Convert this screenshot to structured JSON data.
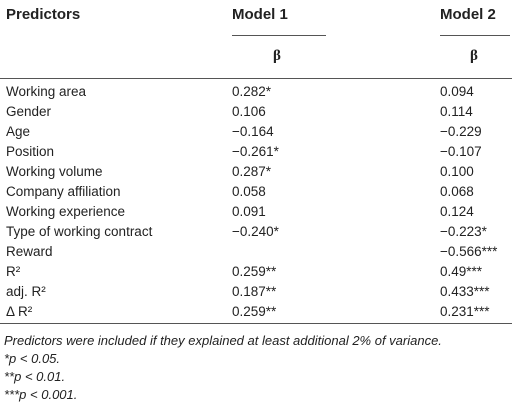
{
  "table": {
    "headers": {
      "predictors": "Predictors",
      "model1": "Model 1",
      "model2": "Model 2"
    },
    "subheaders": {
      "model1": "β",
      "model2": "β"
    },
    "rows": [
      {
        "label": "Working area",
        "m1": "0.282*",
        "m2": "0.094"
      },
      {
        "label": "Gender",
        "m1": "0.106",
        "m2": "0.114"
      },
      {
        "label": "Age",
        "m1": "−0.164",
        "m2": "−0.229"
      },
      {
        "label": "Position",
        "m1": "−0.261*",
        "m2": "−0.107"
      },
      {
        "label": "Working volume",
        "m1": "0.287*",
        "m2": "0.100"
      },
      {
        "label": "Company affiliation",
        "m1": "0.058",
        "m2": "0.068"
      },
      {
        "label": "Working experience",
        "m1": "0.091",
        "m2": "0.124"
      },
      {
        "label": "Type of working contract",
        "m1": "−0.240*",
        "m2": "−0.223*"
      },
      {
        "label": "Reward",
        "m1": "",
        "m2": "−0.566***"
      },
      {
        "label": "R²",
        "m1": "0.259**",
        "m2": "0.49***"
      },
      {
        "label": "adj. R²",
        "m1": "0.187**",
        "m2": "0.433***"
      },
      {
        "label": "Δ R²",
        "m1": "0.259**",
        "m2": "0.231***"
      }
    ]
  },
  "notes": [
    "Predictors were included if they explained at least additional 2% of variance.",
    "*p < 0.05.",
    "**p < 0.01.",
    "***p < 0.001."
  ]
}
